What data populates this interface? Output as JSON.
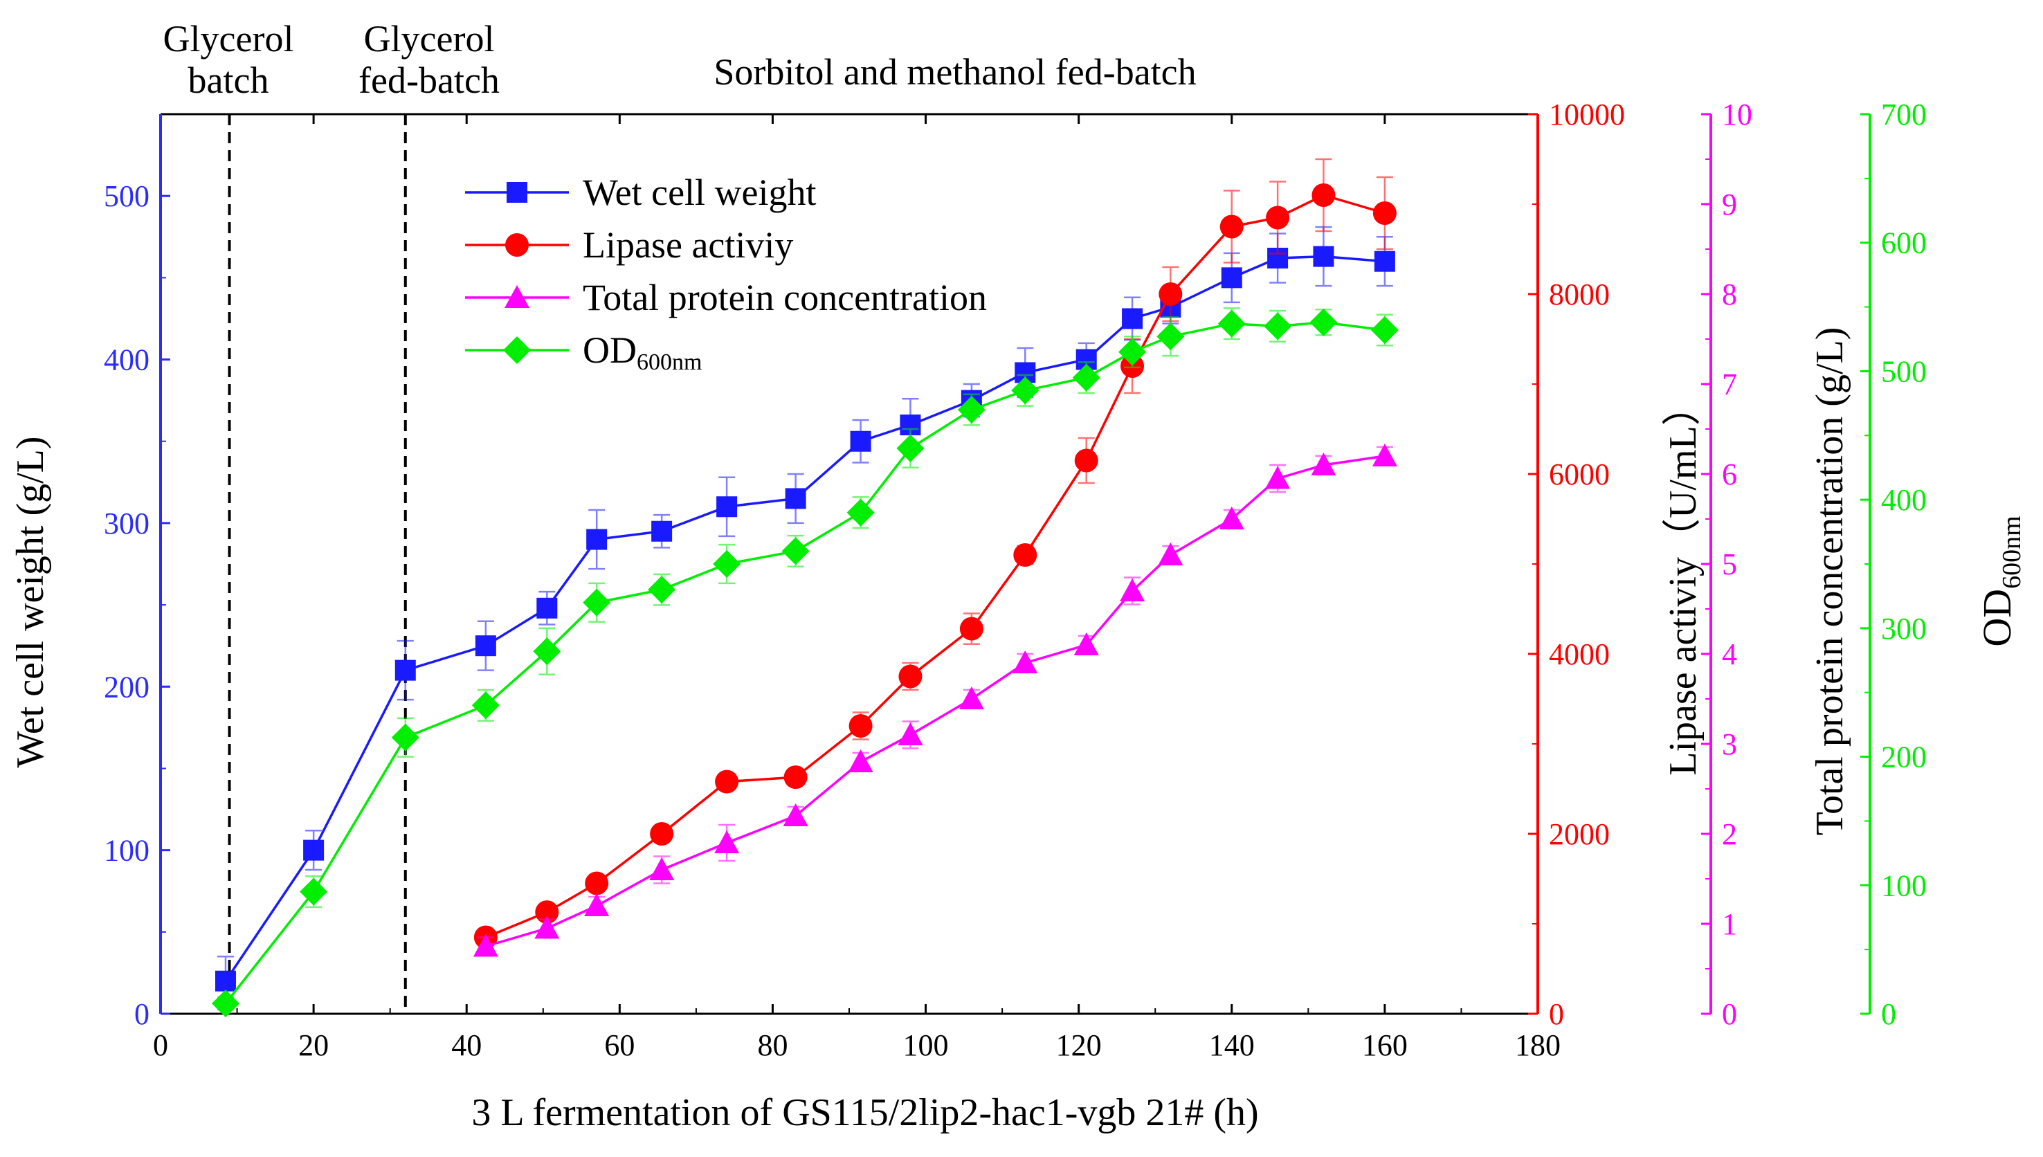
{
  "chart_data": {
    "type": "line",
    "xlabel": "3 L fermentation of GS115/2lip2-hac1-vgb 21# (h)",
    "xlim": [
      0,
      180
    ],
    "xticks": [
      0,
      20,
      40,
      60,
      80,
      100,
      120,
      140,
      160,
      180
    ],
    "phases": [
      {
        "id": "glycerol-batch",
        "line1": "Glycerol",
        "line2": "batch",
        "end_x": 9
      },
      {
        "id": "glycerol-fed-batch",
        "line1": "Glycerol",
        "line2": "fed-batch",
        "end_x": 32
      },
      {
        "id": "sorbitol-methanol",
        "line1": "Sorbitol and methanol fed-batch",
        "line2": ""
      }
    ],
    "axes": {
      "wcw": {
        "label": "Wet cell weight (g/L)",
        "color": "#2b2bff",
        "min": 0,
        "max": 550,
        "ticks": [
          0,
          100,
          200,
          300,
          400,
          500
        ]
      },
      "lipase": {
        "label": "Lipase activiy（U/mL）",
        "color": "#ff0000",
        "min": 0,
        "max": 10000,
        "ticks": [
          0,
          2000,
          4000,
          6000,
          8000,
          10000
        ]
      },
      "protein": {
        "label": "Total protein concentration (g/L)",
        "color": "#ff00ff",
        "min": 0,
        "max": 10,
        "ticks": [
          0,
          1,
          2,
          3,
          4,
          5,
          6,
          7,
          8,
          9,
          10
        ]
      },
      "od": {
        "label_main": "OD",
        "label_sub": "600nm",
        "color": "#00ee00",
        "min": 0,
        "max": 700,
        "ticks": [
          0,
          100,
          200,
          300,
          400,
          500,
          600,
          700
        ]
      }
    },
    "series": [
      {
        "id": "wcw",
        "name": "Wet cell weight",
        "axis": "wcw",
        "marker": "square",
        "color": "#1a1aff",
        "x": [
          8.5,
          20,
          32,
          42.5,
          50.5,
          57,
          65.5,
          74,
          83,
          91.5,
          98,
          106,
          113,
          121,
          127,
          132,
          140,
          146,
          152,
          160
        ],
        "values": [
          20,
          100,
          210,
          225,
          248,
          290,
          295,
          310,
          315,
          350,
          360,
          375,
          392,
          400,
          425,
          432,
          450,
          462,
          463,
          460
        ],
        "errors": [
          15,
          12,
          18,
          15,
          10,
          18,
          10,
          18,
          15,
          13,
          16,
          10,
          15,
          10,
          13,
          10,
          15,
          15,
          18,
          15
        ]
      },
      {
        "id": "lipase",
        "name": "Lipase activiy",
        "axis": "lipase",
        "marker": "circle",
        "color": "#ff0000",
        "x": [
          42.5,
          50.5,
          57,
          65.5,
          74,
          83,
          91.5,
          98,
          106,
          113,
          121,
          127,
          132,
          140,
          146,
          152,
          160
        ],
        "values": [
          850,
          1130,
          1450,
          2000,
          2580,
          2630,
          3200,
          3750,
          4280,
          5100,
          6150,
          7200,
          8000,
          8750,
          8850,
          9100,
          8900
        ],
        "errors": [
          50,
          60,
          60,
          60,
          70,
          60,
          150,
          150,
          170,
          100,
          250,
          300,
          300,
          400,
          400,
          400,
          400
        ]
      },
      {
        "id": "protein",
        "name": "Total protein concentration",
        "axis": "protein",
        "marker": "triangle",
        "color": "#ff00ff",
        "x": [
          42.5,
          50.5,
          57,
          65.5,
          74,
          83,
          91.5,
          98,
          106,
          113,
          121,
          127,
          132,
          140,
          146,
          152,
          160
        ],
        "values": [
          0.75,
          0.95,
          1.2,
          1.6,
          1.9,
          2.2,
          2.8,
          3.1,
          3.5,
          3.9,
          4.1,
          4.7,
          5.1,
          5.5,
          5.95,
          6.1,
          6.2
        ],
        "errors": [
          0.1,
          0.1,
          0.1,
          0.15,
          0.2,
          0.1,
          0.1,
          0.15,
          0.1,
          0.1,
          0.1,
          0.15,
          0.1,
          0.1,
          0.15,
          0.1,
          0.1
        ]
      },
      {
        "id": "od",
        "name": "OD",
        "name_sub": "600nm",
        "axis": "od",
        "marker": "diamond",
        "color": "#00ee00",
        "x": [
          8.5,
          20,
          32,
          42.5,
          50.5,
          57,
          65.5,
          74,
          83,
          91.5,
          98,
          106,
          113,
          121,
          127,
          132,
          140,
          146,
          152,
          160
        ],
        "values": [
          8,
          95,
          215,
          240,
          282,
          320,
          330,
          350,
          360,
          390,
          440,
          470,
          485,
          495,
          515,
          527,
          537,
          535,
          538,
          532
        ],
        "errors": [
          5,
          12,
          15,
          12,
          18,
          15,
          12,
          15,
          12,
          12,
          15,
          12,
          12,
          12,
          12,
          15,
          12,
          12,
          10,
          12
        ]
      }
    ]
  }
}
